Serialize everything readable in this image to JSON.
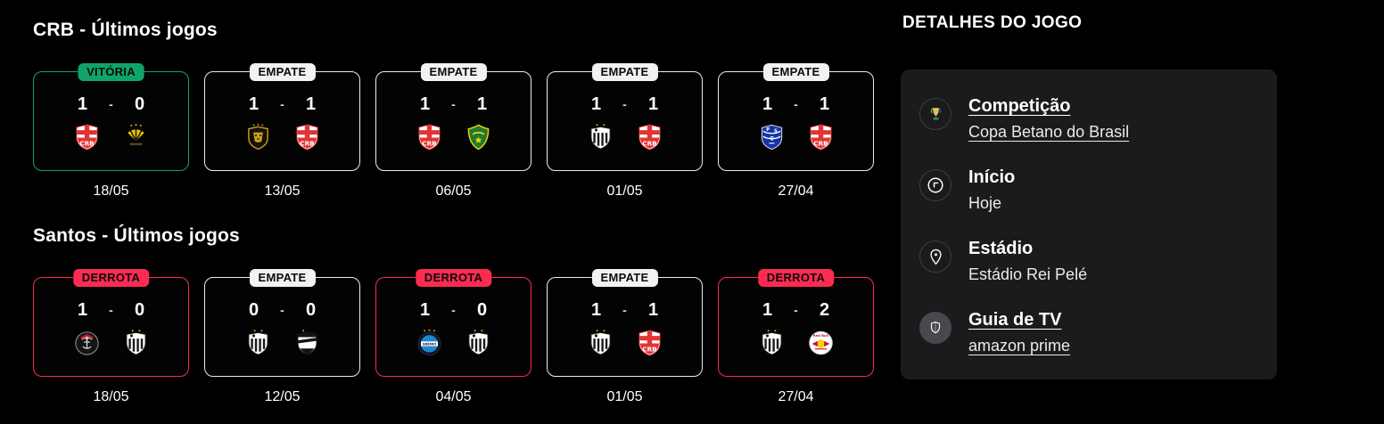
{
  "page": {
    "score_separator": "-"
  },
  "colors": {
    "win": "#10A566",
    "draw": "#F2F2F2",
    "loss": "#FB2B51",
    "background": "#000000",
    "panel": "#1B1B1D"
  },
  "sections": [
    {
      "title": "CRB - Últimos jogos",
      "matches": [
        {
          "result_label": "VITÓRIA",
          "result": "win",
          "home_score": "1",
          "away_score": "0",
          "home_logo": "crb-logo",
          "away_logo": "criciuma-logo",
          "date": "18/05"
        },
        {
          "result_label": "EMPATE",
          "result": "draw",
          "home_score": "1",
          "away_score": "1",
          "home_logo": "novorizontino-logo",
          "away_logo": "crb-logo",
          "date": "13/05"
        },
        {
          "result_label": "EMPATE",
          "result": "draw",
          "home_score": "1",
          "away_score": "1",
          "home_logo": "crb-logo",
          "away_logo": "cuiaba-logo",
          "date": "06/05"
        },
        {
          "result_label": "EMPATE",
          "result": "draw",
          "home_score": "1",
          "away_score": "1",
          "home_logo": "santos-logo",
          "away_logo": "crb-logo",
          "date": "01/05"
        },
        {
          "result_label": "EMPATE",
          "result": "draw",
          "home_score": "1",
          "away_score": "1",
          "home_logo": "paysandu-logo",
          "away_logo": "crb-logo",
          "date": "27/04"
        }
      ]
    },
    {
      "title": "Santos - Últimos jogos",
      "matches": [
        {
          "result_label": "DERROTA",
          "result": "loss",
          "home_score": "1",
          "away_score": "0",
          "home_logo": "corinthians-logo",
          "away_logo": "santos-logo",
          "date": "18/05"
        },
        {
          "result_label": "EMPATE",
          "result": "draw",
          "home_score": "0",
          "away_score": "0",
          "home_logo": "santos-logo",
          "away_logo": "ceara-logo",
          "date": "12/05"
        },
        {
          "result_label": "DERROTA",
          "result": "loss",
          "home_score": "1",
          "away_score": "0",
          "home_logo": "gremio-logo",
          "away_logo": "santos-logo",
          "date": "04/05"
        },
        {
          "result_label": "EMPATE",
          "result": "draw",
          "home_score": "1",
          "away_score": "1",
          "home_logo": "santos-logo",
          "away_logo": "crb-logo",
          "date": "01/05"
        },
        {
          "result_label": "DERROTA",
          "result": "loss",
          "home_score": "1",
          "away_score": "2",
          "home_logo": "santos-logo",
          "away_logo": "bragantino-logo",
          "date": "27/04"
        }
      ]
    }
  ],
  "details": {
    "title": "DETALHES DO JOGO",
    "items": [
      {
        "icon": "trophy-icon",
        "label": "Competição",
        "value": "Copa Betano do Brasil",
        "is_link": true
      },
      {
        "icon": "clock-icon",
        "label": "Início",
        "value": "Hoje",
        "is_link": false
      },
      {
        "icon": "location-pin-icon",
        "label": "Estádio",
        "value": "Estádio Rei Pelé",
        "is_link": false
      },
      {
        "icon": "shield-icon",
        "label": "Guia de TV",
        "value": "amazon prime",
        "is_link": true
      }
    ]
  }
}
